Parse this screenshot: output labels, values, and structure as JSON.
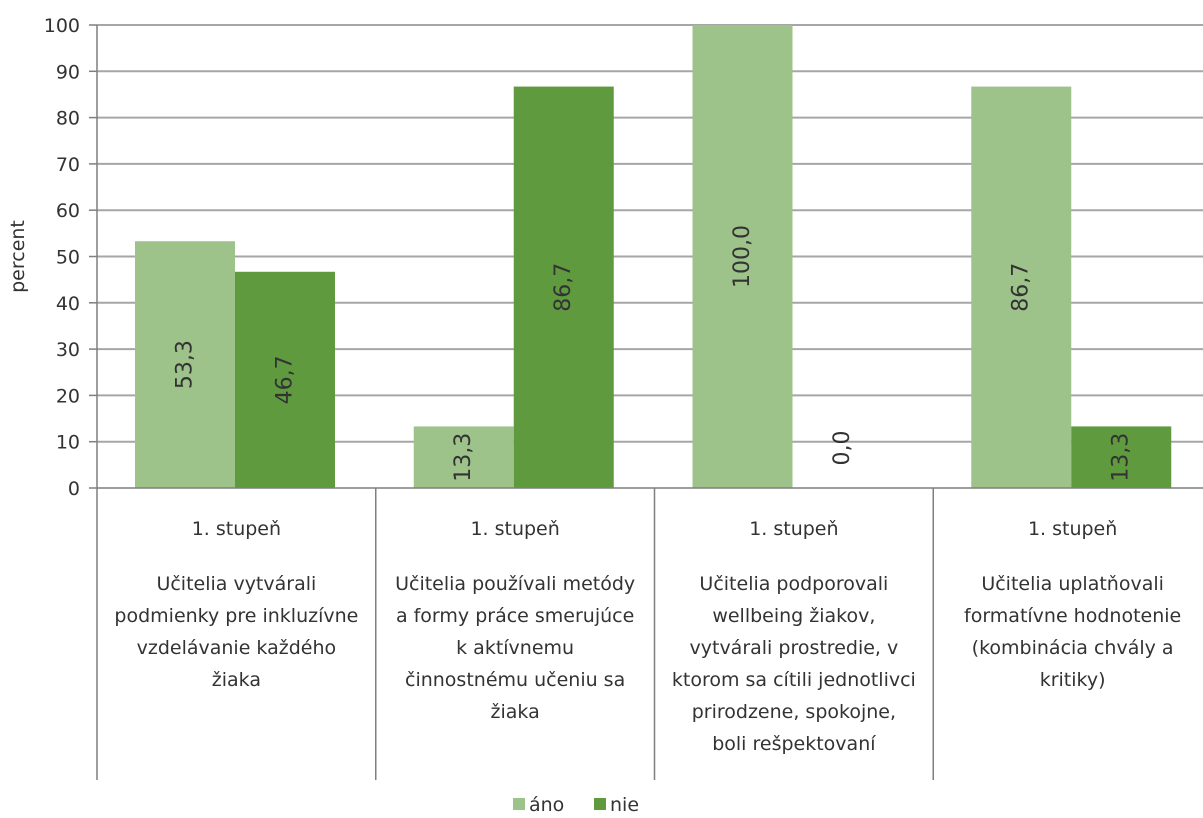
{
  "chart_data": {
    "type": "bar",
    "ylabel": "percent",
    "ylim": [
      0,
      100
    ],
    "yticks": [
      0,
      10,
      20,
      30,
      40,
      50,
      60,
      70,
      80,
      90,
      100
    ],
    "grid": true,
    "legend_position": "bottom",
    "categories": [
      {
        "group": "1. stupeň",
        "lines": [
          "Učitelia vytvárali",
          "podmienky pre inkluzívne",
          "vzdelávanie každého",
          "žiaka"
        ]
      },
      {
        "group": "1. stupeň",
        "lines": [
          "Učitelia používali metódy",
          "a formy práce smerujúce",
          "k aktívnemu",
          "činnostnému učeniu sa",
          "žiaka"
        ]
      },
      {
        "group": "1. stupeň",
        "lines": [
          "Učitelia podporovali",
          "wellbeing žiakov,",
          "vytvárali prostredie, v",
          "ktorom sa cítili jednotlivci",
          "prirodzene, spokojne,",
          "boli rešpektovaní"
        ]
      },
      {
        "group": "1. stupeň",
        "lines": [
          "Učitelia uplatňovali",
          "formatívne hodnotenie",
          "(kombinácia chvály a",
          "kritiky)"
        ]
      }
    ],
    "series": [
      {
        "name": "áno",
        "color": "#9dc38a",
        "values": [
          53.3,
          13.3,
          100.0,
          86.7
        ],
        "labels": [
          "53,3",
          "13,3",
          "100,0",
          "86,7"
        ]
      },
      {
        "name": "nie",
        "color": "#5f9a3f",
        "values": [
          46.7,
          86.7,
          0.0,
          13.3
        ],
        "labels": [
          "46,7",
          "86,7",
          "0,0",
          "13,3"
        ]
      }
    ]
  }
}
